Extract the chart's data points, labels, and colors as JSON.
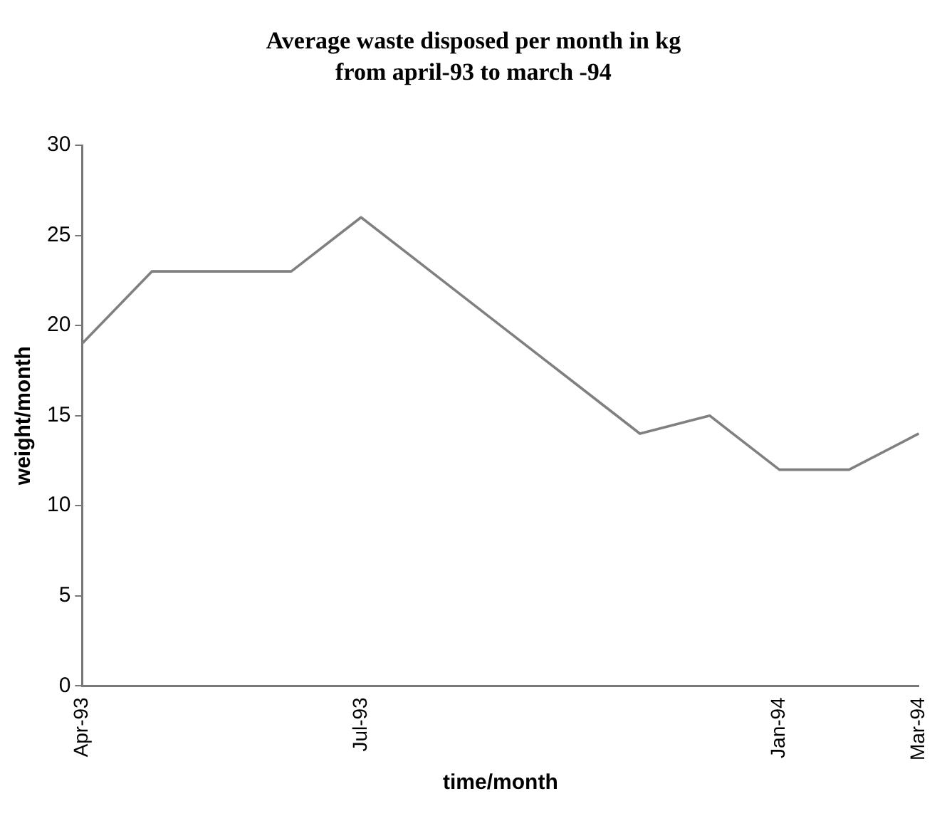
{
  "chart_data": {
    "type": "line",
    "title": "Average waste disposed per month in kg",
    "subtitle": "from april-93 to march -94",
    "xlabel": "time/month",
    "ylabel": "weight/month",
    "categories": [
      "Apr-93",
      null,
      null,
      null,
      "Jul-93",
      null,
      null,
      null,
      null,
      null,
      "Jan-94",
      null,
      "Mar-94"
    ],
    "series": [
      {
        "color": "#808080",
        "values": [
          19,
          23,
          23,
          23,
          26,
          23,
          20,
          17,
          14,
          15,
          12,
          12,
          14
        ]
      }
    ],
    "ylim": [
      0,
      30
    ],
    "yticks": [
      0,
      5,
      10,
      15,
      20,
      25,
      30
    ],
    "grid": false,
    "legend": false,
    "marker": "none",
    "line_style": "solid"
  }
}
